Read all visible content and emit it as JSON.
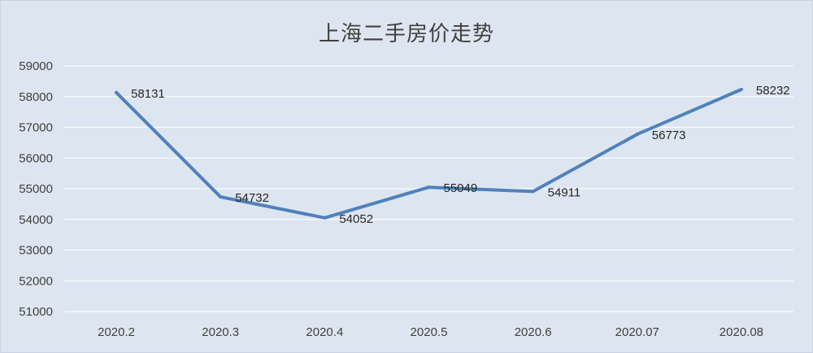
{
  "chart_data": {
    "type": "line",
    "title": "上海二手房价走势",
    "categories": [
      "2020.2",
      "2020.3",
      "2020.4",
      "2020.5",
      "2020.6",
      "2020.07",
      "2020.08"
    ],
    "series": [
      {
        "values": [
          58131,
          54732,
          54052,
          55049,
          54911,
          56773,
          58232
        ]
      }
    ],
    "ylim": [
      51000,
      59000
    ],
    "yticks": [
      51000,
      52000,
      53000,
      54000,
      55000,
      56000,
      57000,
      58000,
      59000
    ],
    "grid": true,
    "legend": "none",
    "xlabel": "",
    "ylabel": ""
  },
  "colors": {
    "line": "#4f81bd",
    "grid": "#ffffff",
    "background": "#dde6f0"
  }
}
